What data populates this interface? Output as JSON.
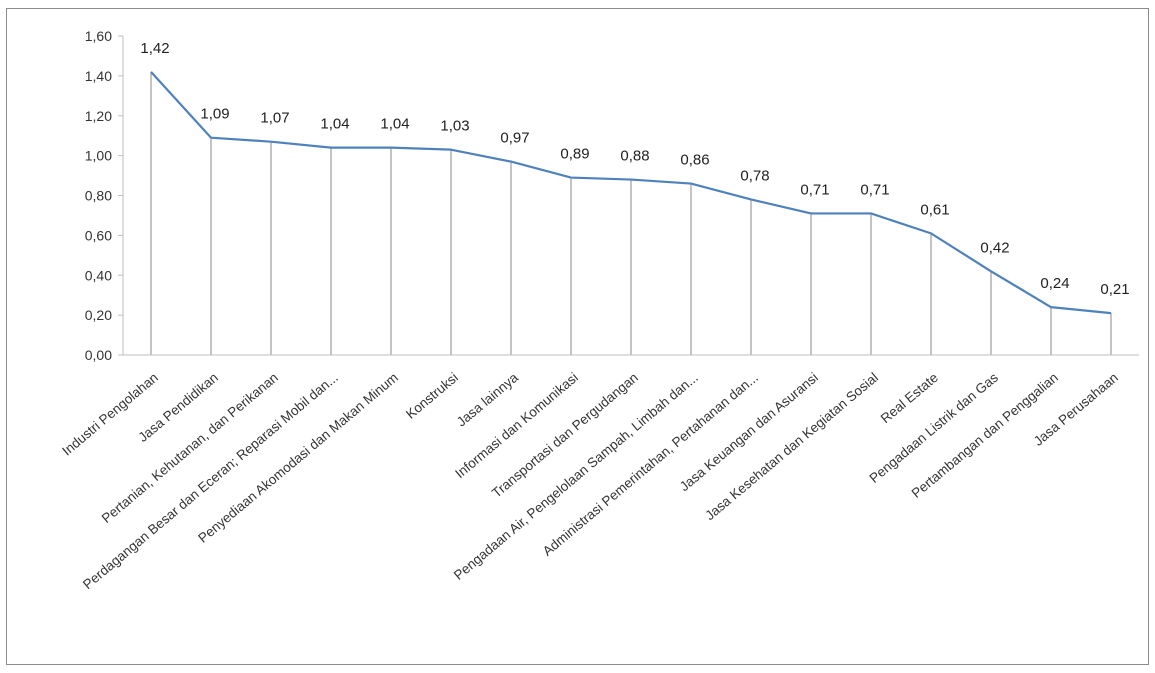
{
  "chart_data": {
    "type": "line",
    "categories": [
      "Industri Pengolahan",
      "Jasa Pendidikan",
      "Pertanian, Kehutanan, dan Perikanan",
      "Perdagangan Besar dan Eceran; Reparasi Mobil dan...",
      "Penyediaan Akomodasi dan Makan Minum",
      "Konstruksi",
      "Jasa lainnya",
      "Informasi dan Komunikasi",
      "Transportasi dan Pergudangan",
      "Pengadaan Air, Pengelolaan Sampah, Limbah dan...",
      "Administrasi Pemerintahan, Pertahanan dan...",
      "Jasa Keuangan dan Asuransi",
      "Jasa Kesehatan dan Kegiatan Sosial",
      "Real Estate",
      "Pengadaan Listrik dan Gas",
      "Pertambangan dan Penggalian",
      "Jasa Perusahaan"
    ],
    "values": [
      1.42,
      1.09,
      1.07,
      1.04,
      1.04,
      1.03,
      0.97,
      0.89,
      0.88,
      0.86,
      0.78,
      0.71,
      0.71,
      0.61,
      0.42,
      0.24,
      0.21
    ],
    "data_labels": [
      "1,42",
      "1,09",
      "1,07",
      "1,04",
      "1,04",
      "1,03",
      "0,97",
      "0,89",
      "0,88",
      "0,86",
      "0,78",
      "0,71",
      "0,71",
      "0,61",
      "0,42",
      "0,24",
      "0,21"
    ],
    "y_ticks": [
      0,
      0.2,
      0.4,
      0.6,
      0.8,
      1.0,
      1.2,
      1.4,
      1.6
    ],
    "y_tick_labels": [
      "0,00",
      "0,20",
      "0,40",
      "0,60",
      "0,80",
      "1,00",
      "1,20",
      "1,40",
      "1,60"
    ],
    "ylim": [
      0,
      1.6
    ],
    "grid": false,
    "drop_lines": true,
    "title": "",
    "xlabel": "",
    "ylabel": "",
    "colors": {
      "line": "#4f81bd",
      "drop_line": "#8a8a8a",
      "axis": "#bfbfbf"
    }
  }
}
